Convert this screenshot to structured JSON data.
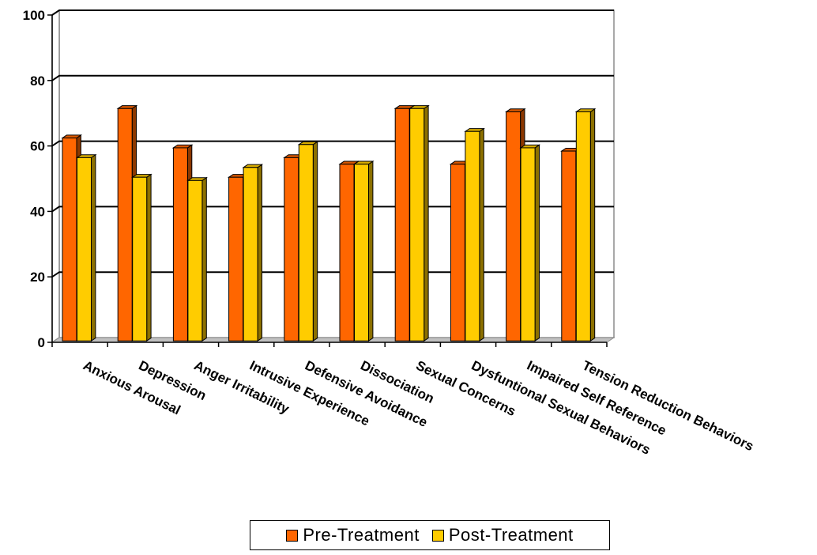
{
  "chart_data": {
    "type": "bar",
    "style": "3d clustered column",
    "categories": [
      "Anxious Arousal",
      "Depression",
      "Anger Irritability",
      "Intrusive Experience",
      "Defensive Avoidance",
      "Dissociation",
      "Sexual Concerns",
      "Dysfuntional Sexual Behaviors",
      "Impaired Self Reference",
      "Tension Reduction Behaviors"
    ],
    "series": [
      {
        "name": "Pre-Treatment",
        "color": "#ff6600",
        "values": [
          62,
          71,
          59,
          50,
          56,
          54,
          71,
          54,
          70,
          58
        ]
      },
      {
        "name": "Post-Treatment",
        "color": "#ffcc00",
        "values": [
          56,
          50,
          49,
          53,
          60,
          54,
          71,
          64,
          59,
          70
        ]
      }
    ],
    "yticks": [
      "0",
      "20",
      "40",
      "60",
      "80",
      "100"
    ],
    "ylim": [
      0,
      100
    ],
    "grid": true,
    "legend_position": "bottom"
  }
}
